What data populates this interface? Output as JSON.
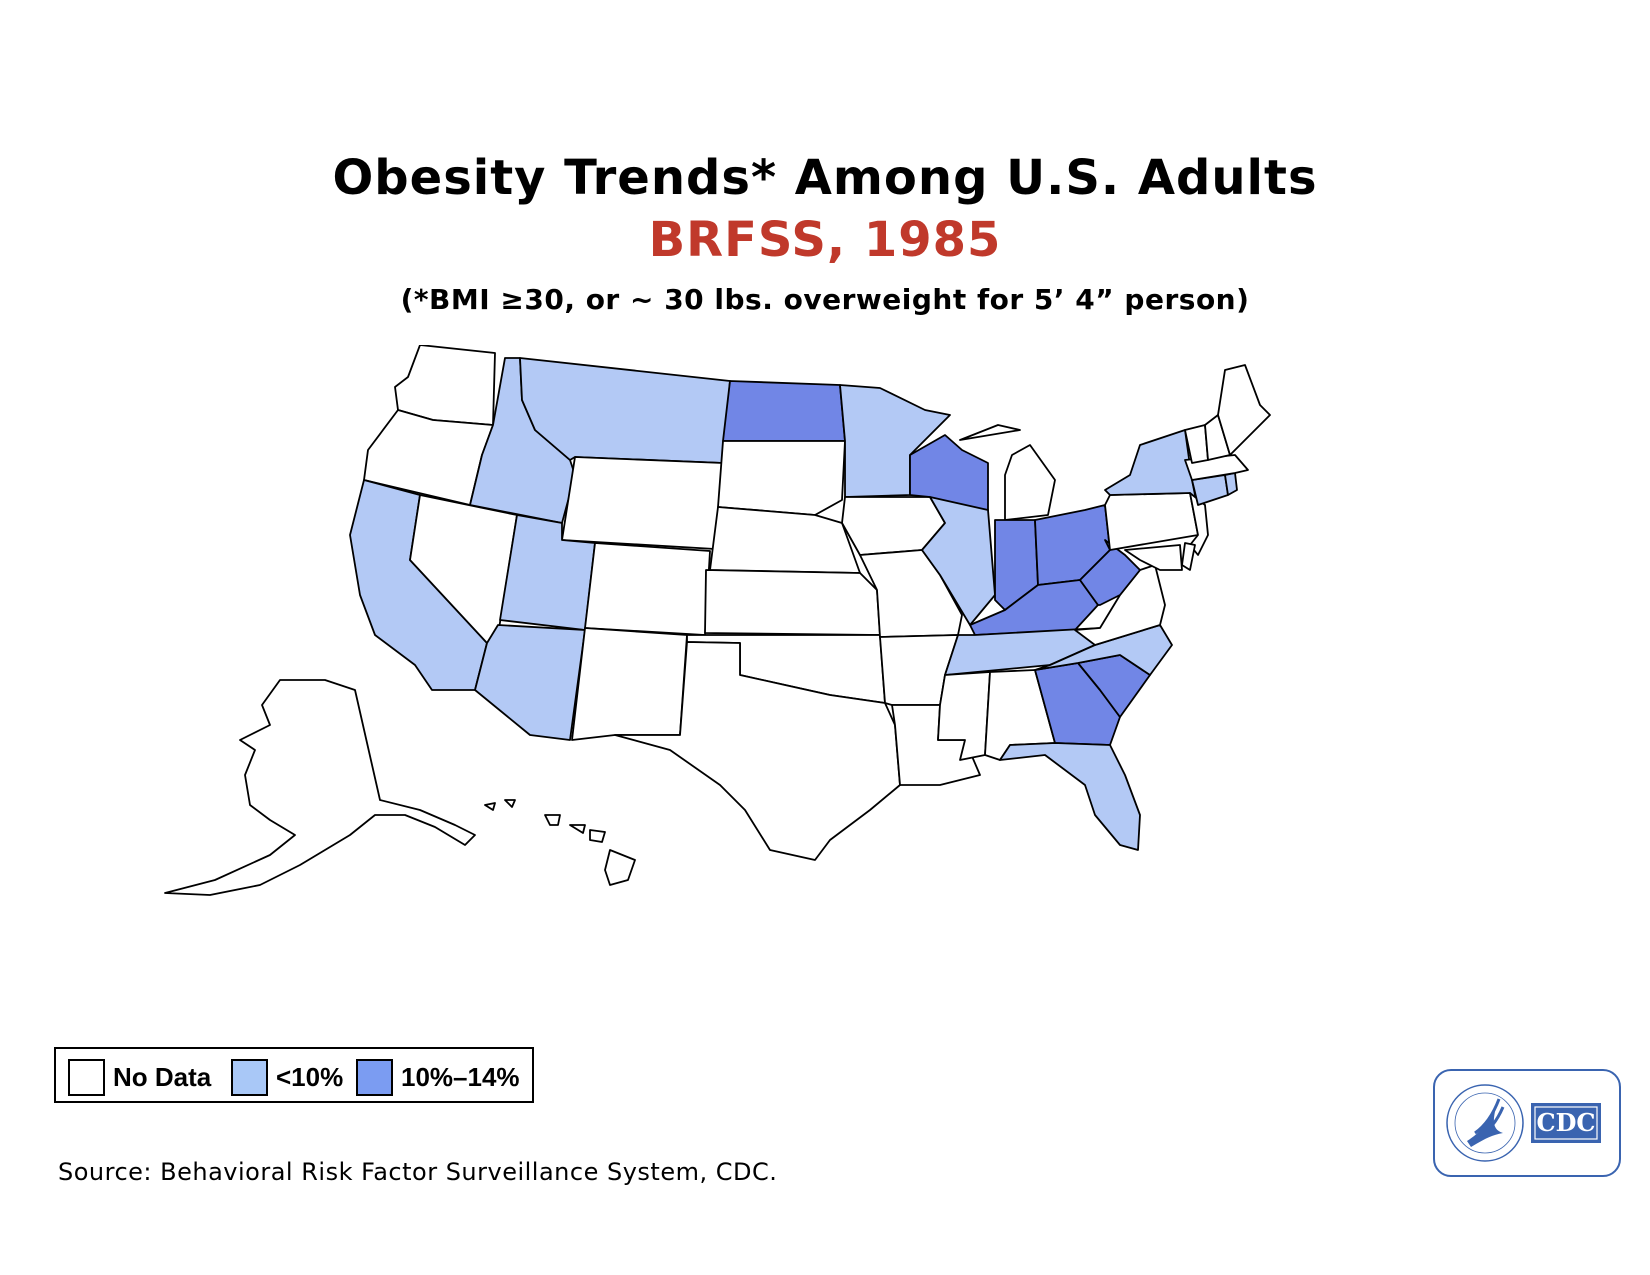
{
  "title": "Obesity Trends* Among U.S. Adults",
  "subtitle": "BRFSS, 1985",
  "note": "(*BMI ≥30, or ~ 30 lbs. overweight for 5’ 4” person)",
  "colors": {
    "no_data": "#ffffff",
    "lt10": "#b3c9f5",
    "p10_14": "#7186e6",
    "subtitle": "#c0392b",
    "logo": "#3a64b0"
  },
  "legend": [
    {
      "label": "No Data",
      "color": "#ffffff"
    },
    {
      "label": "<10%",
      "color": "#a9c8f7"
    },
    {
      "label": "10%–14%",
      "color": "#7b9cf2"
    }
  ],
  "map_data": {
    "year": "1985",
    "categories": [
      "No Data",
      "<10%",
      "10%–14%"
    ],
    "states": {
      "WA": "No Data",
      "OR": "No Data",
      "CA": "<10%",
      "NV": "No Data",
      "ID": "<10%",
      "MT": "<10%",
      "WY": "No Data",
      "UT": "<10%",
      "AZ": "<10%",
      "CO": "No Data",
      "NM": "No Data",
      "ND": "10%–14%",
      "SD": "No Data",
      "NE": "No Data",
      "KS": "No Data",
      "OK": "No Data",
      "TX": "No Data",
      "MN": "<10%",
      "IA": "No Data",
      "MO": "No Data",
      "AR": "No Data",
      "LA": "No Data",
      "WI": "10%–14%",
      "IL": "<10%",
      "MI": "No Data",
      "IN": "10%–14%",
      "OH": "10%–14%",
      "KY": "10%–14%",
      "TN": "<10%",
      "MS": "No Data",
      "AL": "No Data",
      "GA": "10%–14%",
      "FL": "<10%",
      "SC": "10%–14%",
      "NC": "<10%",
      "VA": "No Data",
      "WV": "10%–14%",
      "PA": "No Data",
      "NY": "<10%",
      "ME": "No Data",
      "VT": "No Data",
      "NH": "No Data",
      "MA": "No Data",
      "CT": "<10%",
      "RI": "<10%",
      "NJ": "No Data",
      "DE": "No Data",
      "MD": "No Data",
      "AK": "No Data",
      "HI": "No Data"
    }
  },
  "source": "Source: Behavioral Risk Factor Surveillance System, CDC.",
  "logo": {
    "cdc_text": "CDC"
  }
}
